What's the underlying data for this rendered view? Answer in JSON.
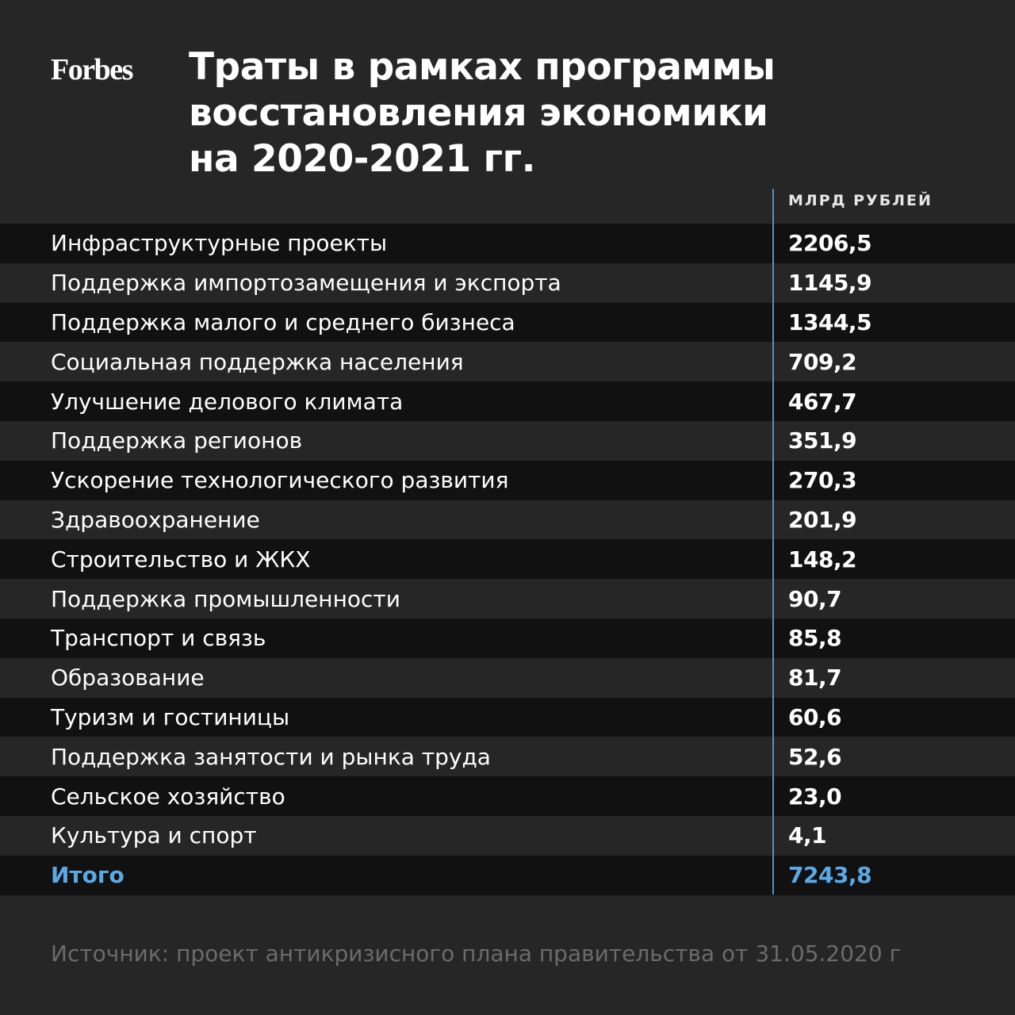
{
  "logo": "Forbes",
  "title_lines": [
    "Траты в рамках программы",
    "восстановления экономики",
    "на 2020-2021 гг."
  ],
  "unit_label": "МЛРД РУБЛЕЙ",
  "rows": [
    {
      "label": "Инфраструктурные проекты",
      "value": "2206,5"
    },
    {
      "label": "Поддержка импортозамещения и экспорта",
      "value": "1145,9"
    },
    {
      "label": "Поддержка малого и среднего бизнеса",
      "value": "1344,5"
    },
    {
      "label": "Социальная поддержка населения",
      "value": "709,2"
    },
    {
      "label": "Улучшение делового климата",
      "value": "467,7"
    },
    {
      "label": "Поддержка регионов",
      "value": "351,9"
    },
    {
      "label": "Ускорение технологического развития",
      "value": "270,3"
    },
    {
      "label": "Здравоохранение",
      "value": "201,9"
    },
    {
      "label": "Строительство и ЖКХ",
      "value": "148,2"
    },
    {
      "label": "Поддержка промышленности",
      "value": "90,7"
    },
    {
      "label": "Транспорт и связь",
      "value": "85,8"
    },
    {
      "label": "Образование",
      "value": "81,7"
    },
    {
      "label": "Туризм и гостиницы",
      "value": "60,6"
    },
    {
      "label": "Поддержка занятости и рынка труда",
      "value": "52,6"
    },
    {
      "label": "Сельское хозяйство",
      "value": "23,0"
    },
    {
      "label": "Культура и спорт",
      "value": "4,1"
    }
  ],
  "total": {
    "label": "Итого",
    "value": "7243,8"
  },
  "source": "Источник: проект антикризисного плана правительства от 31.05.2020 г",
  "colors": {
    "background": "#262626",
    "row_dark": "#111111",
    "accent": "#5aa9e6",
    "divider": "#5b8fc4",
    "source_text": "#6b6b6b"
  }
}
